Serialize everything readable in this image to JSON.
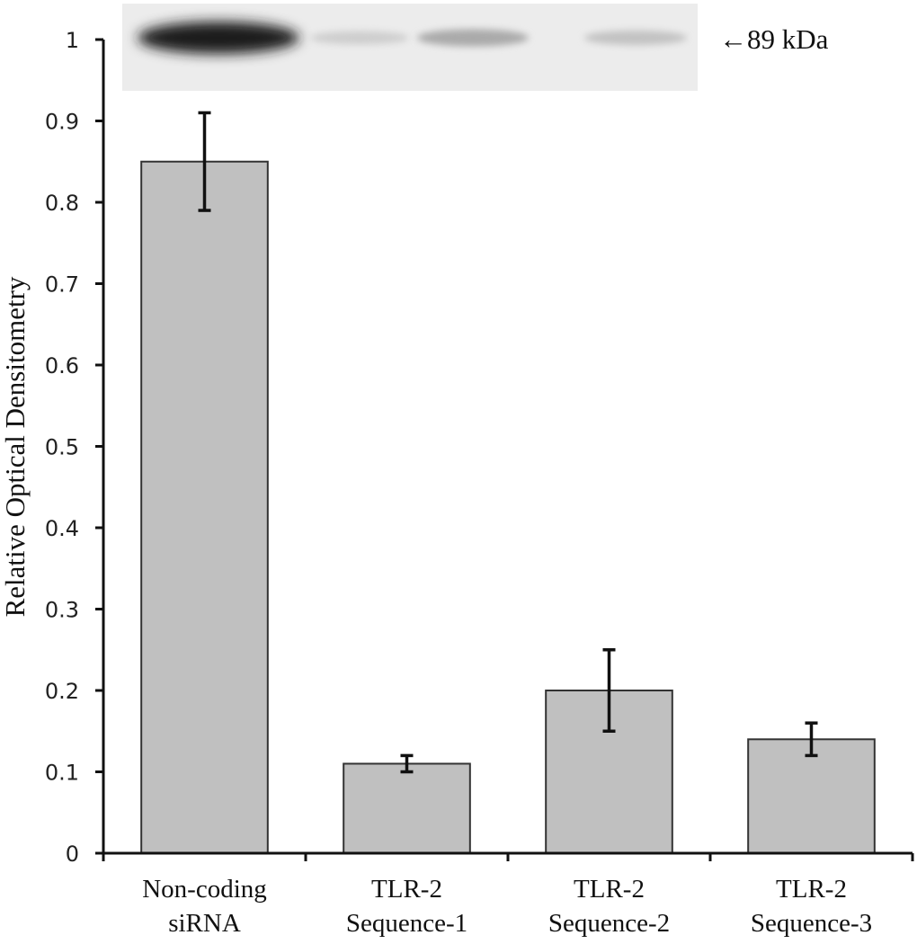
{
  "chart_data": {
    "type": "bar",
    "title": "",
    "ylabel": "Relative Optical Densitometry",
    "xlabel": "",
    "ylim": [
      0,
      1
    ],
    "yticks": [
      0,
      0.1,
      0.2,
      0.3,
      0.4,
      0.5,
      0.6,
      0.7,
      0.8,
      0.9,
      1
    ],
    "ytick_labels": [
      "0",
      "0.1",
      "0.2",
      "0.3",
      "0.4",
      "0.5",
      "0.6",
      "0.7",
      "0.8",
      "0.9",
      "1"
    ],
    "categories": [
      [
        "Non-coding",
        "siRNA"
      ],
      [
        "TLR-2",
        "Sequence-1"
      ],
      [
        "TLR-2",
        "Sequence-2"
      ],
      [
        "TLR-2",
        "Sequence-3"
      ]
    ],
    "values": [
      0.85,
      0.11,
      0.2,
      0.14
    ],
    "error_low": [
      0.79,
      0.1,
      0.15,
      0.12
    ],
    "error_high": [
      0.91,
      0.12,
      0.25,
      0.16
    ],
    "grid": false,
    "bar_color": "#c0c0c0",
    "bar_edge_color": "#333333",
    "inset_image": {
      "type": "western-blot",
      "band_label": "←89 kDa",
      "band_intensities": [
        1.0,
        0.12,
        0.3,
        0.18
      ]
    }
  }
}
